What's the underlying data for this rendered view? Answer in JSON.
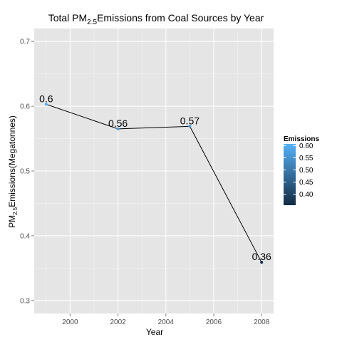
{
  "chart_data": {
    "type": "line",
    "title": {
      "prefix": "Total PM",
      "subscript": "2.5",
      "suffix": "Emissions from Coal Sources by Year"
    },
    "xlabel": "Year",
    "ylabel": {
      "prefix": "PM",
      "subscript": "2.5",
      "suffix": "Emissions(Megatonnes)"
    },
    "x": [
      1999,
      2002,
      2005,
      2008
    ],
    "values": [
      0.603,
      0.565,
      0.569,
      0.359
    ],
    "point_labels": [
      "0.6",
      "0.56",
      "0.57",
      "0.36"
    ],
    "xlim": [
      1998.5,
      2008.5
    ],
    "ylim": [
      0.28,
      0.72
    ],
    "x_ticks": [
      2000,
      2002,
      2004,
      2006,
      2008
    ],
    "x_tick_labels": [
      "2000",
      "2002",
      "2004",
      "2006",
      "2008"
    ],
    "y_ticks": [
      0.3,
      0.4,
      0.5,
      0.6,
      0.7
    ],
    "y_tick_labels": [
      "0.3",
      "0.4",
      "0.5",
      "0.6",
      "0.7"
    ],
    "grid": true,
    "line_color": "#000000",
    "panel_color": "#e5e5e5",
    "grid_color": "#ffffff",
    "legend": {
      "title": "Emissions",
      "placement": "right",
      "ticks": [
        0.4,
        0.45,
        0.5,
        0.55,
        0.6
      ],
      "tick_labels": [
        "0.40",
        "0.45",
        "0.50",
        "0.55",
        "0.60"
      ],
      "range": [
        0.355,
        0.607
      ],
      "color_low": "#132b43",
      "color_high": "#56b1f7"
    }
  }
}
